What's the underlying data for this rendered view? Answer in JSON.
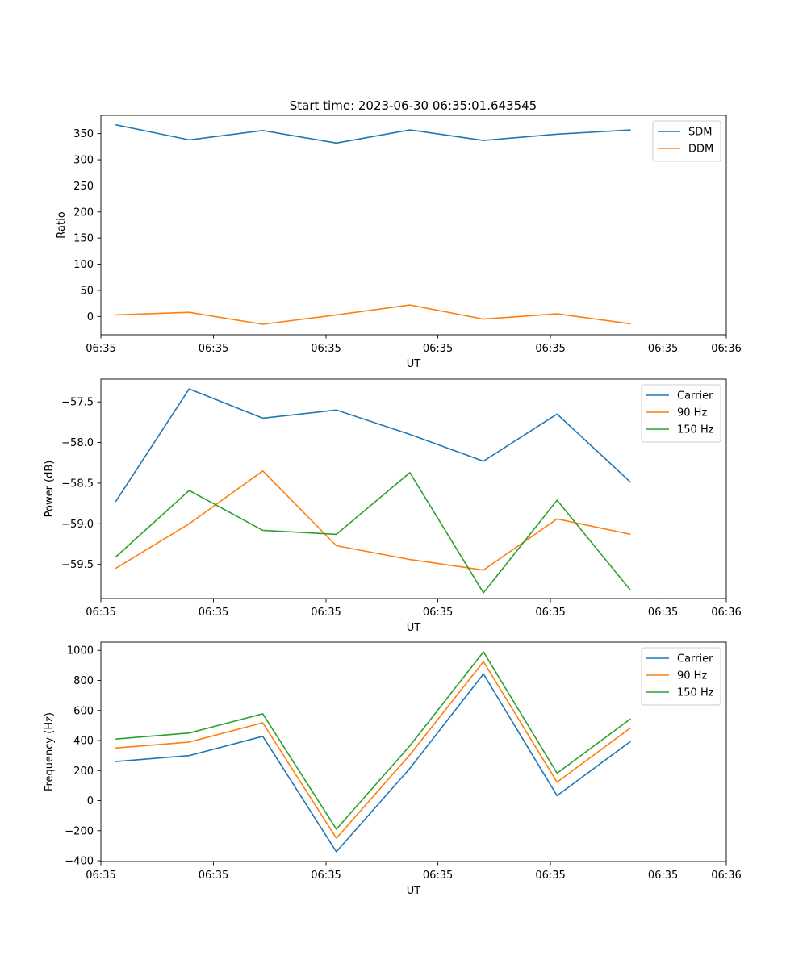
{
  "figure_title": "Start time: 2023-06-30 06:35:01.643545",
  "colors": {
    "blue": "#1f77b4",
    "orange": "#ff7f0e",
    "green": "#2ca02c"
  },
  "chart_data": [
    {
      "type": "line",
      "title": "Start time: 2023-06-30 06:35:01.643545",
      "xlabel": "UT",
      "ylabel": "Ratio",
      "x": [
        1,
        2,
        3,
        4,
        5,
        6,
        7,
        8
      ],
      "xlim": [
        0.8,
        9.3
      ],
      "xticks": [
        0.8,
        2.33,
        3.86,
        5.38,
        6.91,
        8.44,
        9.3
      ],
      "xticklabels": [
        "06:35",
        "06:35",
        "06:35",
        "06:35",
        "06:35",
        "06:35",
        "06:36"
      ],
      "ylim": [
        -35,
        385
      ],
      "yticks": [
        0,
        50,
        100,
        150,
        200,
        250,
        300,
        350
      ],
      "yticklabels": [
        "0",
        "50",
        "100",
        "150",
        "200",
        "250",
        "300",
        "350"
      ],
      "legend": "top-right",
      "grid": false,
      "series": [
        {
          "name": "SDM",
          "color": "#1f77b4",
          "values": [
            367,
            338,
            356,
            332,
            357,
            337,
            349,
            357
          ]
        },
        {
          "name": "DDM",
          "color": "#ff7f0e",
          "values": [
            3,
            8,
            -15,
            3,
            22,
            -5,
            5,
            -14
          ]
        }
      ]
    },
    {
      "type": "line",
      "title": "",
      "xlabel": "UT",
      "ylabel": "Power (dB)",
      "x": [
        1,
        2,
        3,
        4,
        5,
        6,
        7,
        8
      ],
      "xlim": [
        0.8,
        9.3
      ],
      "xticks": [
        0.8,
        2.33,
        3.86,
        5.38,
        6.91,
        8.44,
        9.3
      ],
      "xticklabels": [
        "06:35",
        "06:35",
        "06:35",
        "06:35",
        "06:35",
        "06:35",
        "06:36"
      ],
      "ylim": [
        -59.92,
        -57.22
      ],
      "yticks": [
        -59.5,
        -59.0,
        -58.5,
        -58.0,
        -57.5
      ],
      "yticklabels": [
        "−59.5",
        "−59.0",
        "−58.5",
        "−58.0",
        "−57.5"
      ],
      "legend": "top-right",
      "grid": false,
      "series": [
        {
          "name": "Carrier",
          "color": "#1f77b4",
          "values": [
            -58.73,
            -57.34,
            -57.7,
            -57.6,
            -57.9,
            -58.23,
            -57.65,
            -58.49
          ]
        },
        {
          "name": "90 Hz",
          "color": "#ff7f0e",
          "values": [
            -59.55,
            -59.0,
            -58.35,
            -59.27,
            -59.44,
            -59.57,
            -58.94,
            -59.13
          ]
        },
        {
          "name": "150 Hz",
          "color": "#2ca02c",
          "values": [
            -59.41,
            -58.59,
            -59.08,
            -59.13,
            -58.37,
            -59.85,
            -58.71,
            -59.82
          ]
        }
      ]
    },
    {
      "type": "line",
      "title": "",
      "xlabel": "UT",
      "ylabel": "Frequency (Hz)",
      "x": [
        1,
        2,
        3,
        4,
        5,
        6,
        7,
        8
      ],
      "xlim": [
        0.8,
        9.3
      ],
      "xticks": [
        0.8,
        2.33,
        3.86,
        5.38,
        6.91,
        8.44,
        9.3
      ],
      "xticklabels": [
        "06:35",
        "06:35",
        "06:35",
        "06:35",
        "06:35",
        "06:35",
        "06:36"
      ],
      "ylim": [
        -405,
        1055
      ],
      "yticks": [
        -400,
        -200,
        0,
        200,
        400,
        600,
        800,
        1000
      ],
      "yticklabels": [
        "−400",
        "−200",
        "0",
        "200",
        "400",
        "600",
        "800",
        "1000"
      ],
      "legend": "top-right",
      "grid": false,
      "series": [
        {
          "name": "Carrier",
          "color": "#1f77b4",
          "values": [
            260,
            300,
            428,
            -340,
            215,
            843,
            33,
            395
          ]
        },
        {
          "name": "90 Hz",
          "color": "#ff7f0e",
          "values": [
            350,
            390,
            518,
            -250,
            305,
            925,
            123,
            485
          ]
        },
        {
          "name": "150 Hz",
          "color": "#2ca02c",
          "values": [
            410,
            450,
            578,
            -190,
            365,
            990,
            183,
            545
          ]
        }
      ]
    }
  ]
}
